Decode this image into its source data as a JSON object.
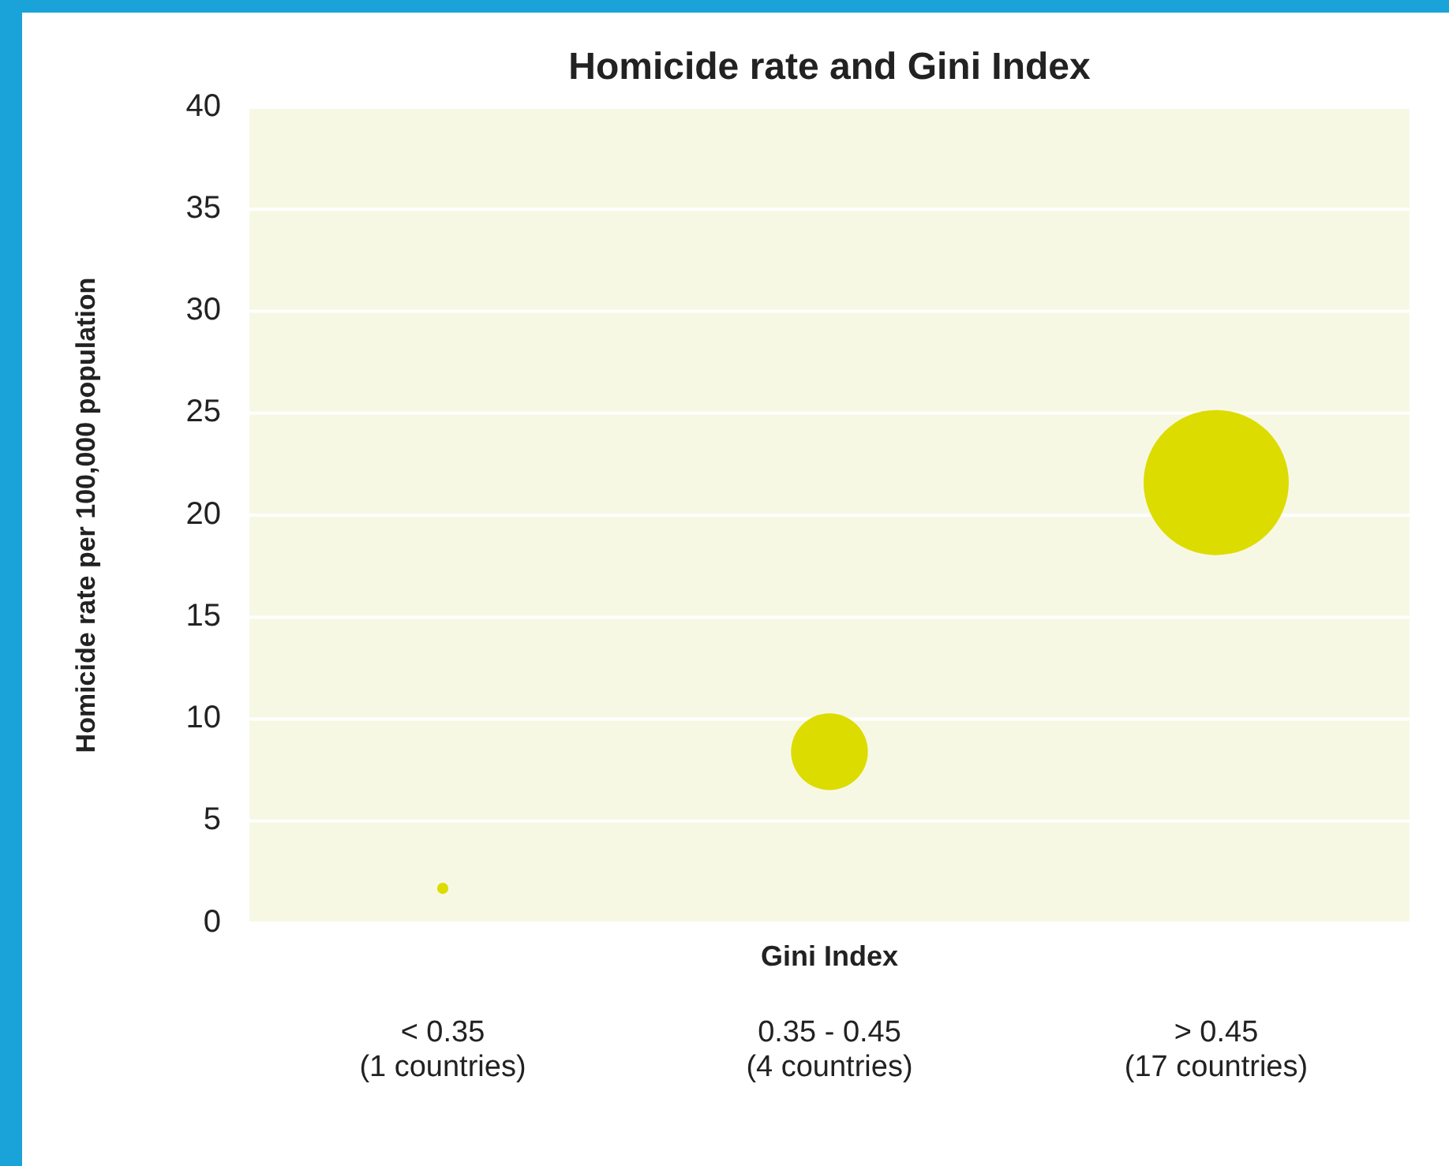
{
  "chart_data": {
    "type": "bubble",
    "title": "Homicide rate and Gini Index",
    "xlabel": "Gini Index",
    "ylabel": "Homicide rate per 100,000 population",
    "categories": [
      "< 0.35\n(1 countries)",
      "0.35 - 0.45\n(4 countries)",
      "> 0.45\n(17 countries)"
    ],
    "series": [
      {
        "color": "#dcdc00",
        "values": [
          1.7,
          8.4,
          21.6
        ],
        "sizes": [
          0.006,
          0.28,
          1
        ]
      }
    ],
    "ylim": [
      0,
      40
    ],
    "yticks": [
      0,
      5,
      10,
      15,
      20,
      25,
      30,
      35,
      40
    ],
    "grid": "y"
  }
}
